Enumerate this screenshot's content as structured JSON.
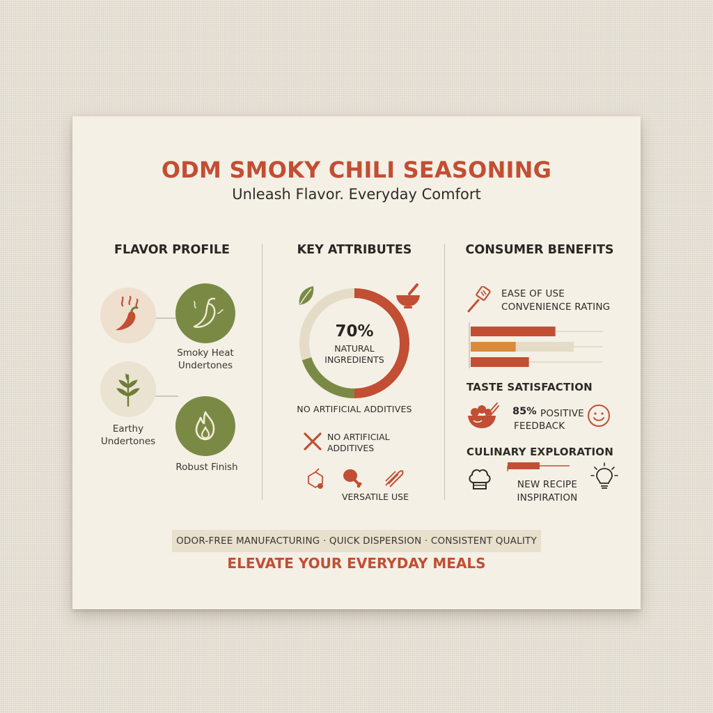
{
  "title": "ODM SMOKY CHILI SEASONING",
  "subtitle": "Unleash Flavor. Everyday Comfort",
  "flavor_profile": {
    "heading": "FLAVOR PROFILE",
    "smoky_heat_label": "Smoky Heat\nUndertones",
    "earthy_label": "Earthy\nUndertones",
    "robust_label": "Robust Finish"
  },
  "key_attributes": {
    "heading": "KEY ATTRIBUTES",
    "ring_value": "70%",
    "ring_fraction": 0.7,
    "ring_label": "NATURAL\nINGREDIENTS",
    "no_additives_caption": "NO ARTIFICIAL ADDITIVES",
    "no_additives_item": "NO ARTIFICIAL\nADDITIVES",
    "versatile_label": "VERSATILE USE"
  },
  "consumer_benefits": {
    "heading": "CONSUMER BENEFITS",
    "ease_label": "EASE OF USE\nCONVENIENCE RATING",
    "ease_bars": [
      0.64,
      0.8,
      0.44
    ],
    "taste_heading": "TASTE SATISFACTION",
    "taste_value": "85%",
    "taste_text": "POSITIVE\nFEEDBACK",
    "culinary_heading": "CULINARY EXPLORATION",
    "culinary_label": "NEW RECIPE\nINSPIRATION"
  },
  "band_text": "ODOR-FREE MANUFACTURING · QUICK DISPERSION · CONSISTENT QUALITY",
  "cta": "ELEVATE YOUR EVERYDAY MEALS",
  "colors": {
    "accent_red": "#c24e33",
    "olive_green": "#7a8a45",
    "orange": "#d98a3c",
    "beige_track": "#e5dcc7"
  }
}
